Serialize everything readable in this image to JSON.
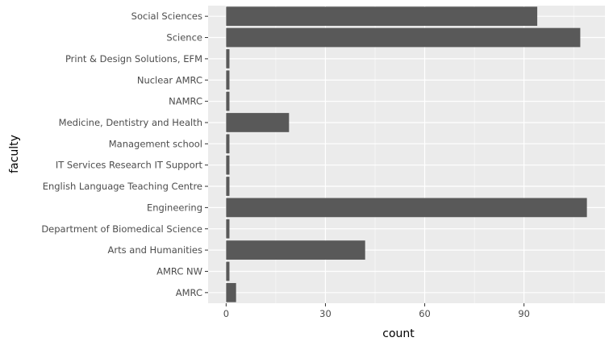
{
  "chart_data": {
    "type": "bar",
    "orientation": "horizontal",
    "categories": [
      "Social Sciences",
      "Science",
      "Print & Design Solutions, EFM",
      "Nuclear AMRC",
      "NAMRC",
      "Medicine, Dentistry and Health",
      "Management school",
      "IT Services Research IT Support",
      "English Language Teaching Centre",
      "Engineering",
      "Department of Biomedical Science ",
      "Arts and Humanities",
      "AMRC NW",
      "AMRC"
    ],
    "values": [
      94,
      107,
      1,
      1,
      1,
      19,
      1,
      1,
      1,
      109,
      1,
      42,
      1,
      3
    ],
    "xlabel": "count",
    "ylabel": "faculty",
    "xlim": [
      -5.45,
      114.45
    ],
    "xticks": [
      0,
      30,
      60,
      90
    ],
    "xtick_labels": [
      "0",
      "30",
      "60",
      "90"
    ],
    "grid": true,
    "colors": {
      "panel": "#EBEBEB",
      "grid_major": "#FFFFFF",
      "bar": "#595959",
      "tick_text": "#4D4D4D",
      "tick_mark": "#333333",
      "axis_title": "#000000"
    }
  }
}
